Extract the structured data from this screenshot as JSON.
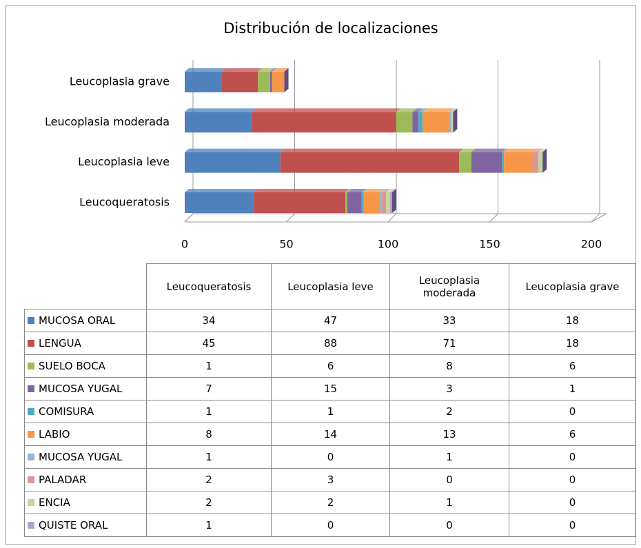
{
  "chart_data": {
    "type": "bar",
    "orientation": "horizontal",
    "stacked": true,
    "title": "Distribución de localizaciones",
    "categories": [
      "Leucoqueratosis",
      "Leucoplasia leve",
      "Leucoplasia moderada",
      "Leucoplasia grave"
    ],
    "series": [
      {
        "name": "MUCOSA ORAL",
        "color": "#4f81bd",
        "values": [
          34,
          47,
          33,
          18
        ]
      },
      {
        "name": "LENGUA",
        "color": "#c0504d",
        "values": [
          45,
          88,
          71,
          18
        ]
      },
      {
        "name": "SUELO BOCA",
        "color": "#9bbb59",
        "values": [
          1,
          6,
          8,
          6
        ]
      },
      {
        "name": "MUCOSA YUGAL",
        "color": "#8064a2",
        "values": [
          7,
          15,
          3,
          1
        ]
      },
      {
        "name": "COMISURA",
        "color": "#4bacc6",
        "values": [
          1,
          1,
          2,
          0
        ]
      },
      {
        "name": "LABIO",
        "color": "#f79646",
        "values": [
          8,
          14,
          13,
          6
        ]
      },
      {
        "name": "MUCOSA YUGAL",
        "color": "#95b3d7",
        "values": [
          1,
          0,
          1,
          0
        ]
      },
      {
        "name": "PALADAR",
        "color": "#d99694",
        "values": [
          2,
          3,
          0,
          0
        ]
      },
      {
        "name": "ENCIA",
        "color": "#c3d69b",
        "values": [
          2,
          2,
          1,
          0
        ]
      },
      {
        "name": "QUISTE ORAL",
        "color": "#b3a2c7",
        "values": [
          1,
          0,
          0,
          0
        ]
      }
    ],
    "xlim": [
      0,
      200
    ],
    "xticks": [
      0,
      50,
      100,
      150,
      200
    ],
    "grid": true
  }
}
